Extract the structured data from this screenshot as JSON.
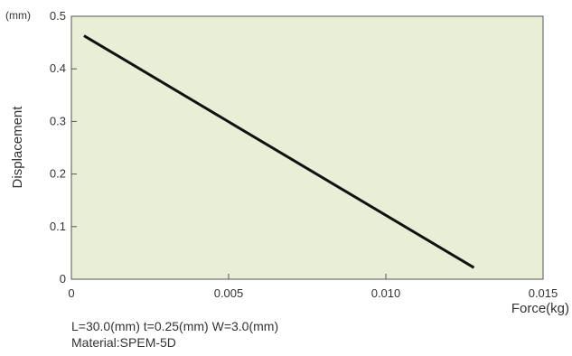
{
  "chart_data": {
    "type": "line",
    "xlabel": "Force(kg)",
    "ylabel": "Displacement",
    "y_unit": "(mm)",
    "xlim": [
      0,
      0.015
    ],
    "ylim": [
      0,
      0.5
    ],
    "x_ticks": [
      "0",
      "0.005",
      "0.010",
      "0.015"
    ],
    "x_tick_values": [
      0,
      0.005,
      0.01,
      0.015
    ],
    "y_ticks": [
      "0",
      "0.1",
      "0.2",
      "0.3",
      "0.4",
      "0.5"
    ],
    "y_tick_values": [
      0,
      0.1,
      0.2,
      0.3,
      0.4,
      0.5
    ],
    "grid": false,
    "legend": "none",
    "series": [
      {
        "x": [
          0.0004,
          0.0128
        ],
        "y": [
          0.463,
          0.022
        ]
      }
    ]
  },
  "notes": {
    "line1": "L=30.0(mm)  t=0.25(mm)  W=3.0(mm)",
    "line2": "Material:SPEM-5D"
  },
  "colors": {
    "plot_background": "#e8efd6",
    "frame": "#555555",
    "series_line": "#111111",
    "text": "#333333"
  }
}
